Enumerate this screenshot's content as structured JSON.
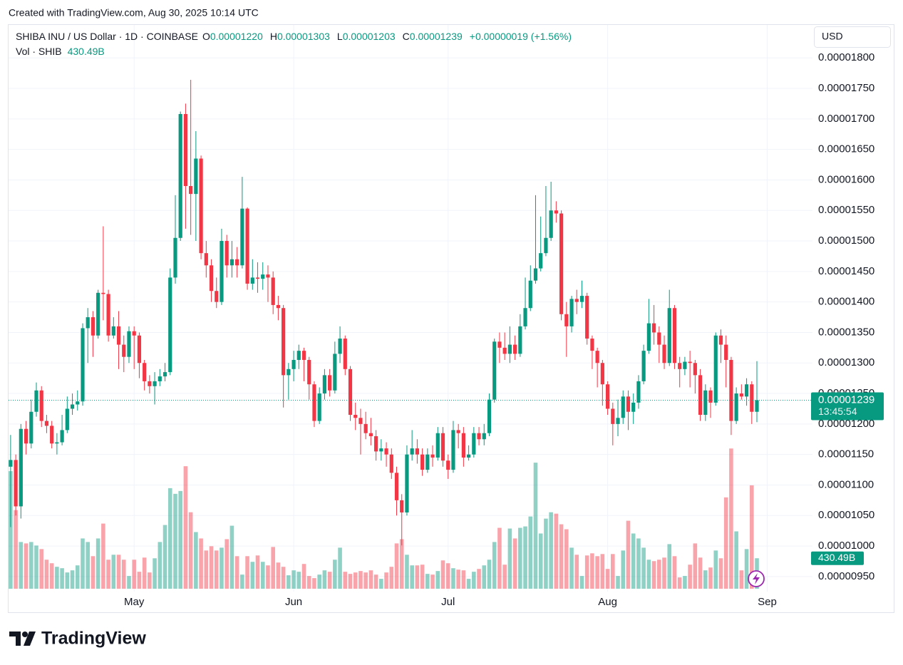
{
  "credit": "Created with TradingView.com, Aug 30, 2025 10:14 UTC",
  "logo": "TradingView",
  "chart_data": {
    "type": "candlestick",
    "title": "SHIBA INU / US Dollar · 1D · COINBASE",
    "ohlc_legend": [
      {
        "label": "O",
        "value": "0.00001220"
      },
      {
        "label": "H",
        "value": "0.00001303"
      },
      {
        "label": "L",
        "value": "0.00001203"
      },
      {
        "label": "C",
        "value": "0.00001239"
      }
    ],
    "change": "+0.00000019 (+1.56%)",
    "volume_title": "Vol · SHIB",
    "volume_value_label": "430.49B",
    "last_price_label": "0.00001239",
    "countdown": "13:45:54",
    "currency": "USD",
    "up_color": "#089981",
    "down_color": "#f23645",
    "grid": true,
    "xlim": [
      -0.4,
      155.8
    ],
    "xticks": [
      {
        "value": 24,
        "label": "May"
      },
      {
        "value": 55,
        "label": "Jun"
      },
      {
        "value": 85,
        "label": "Jul"
      },
      {
        "value": 116,
        "label": "Aug"
      },
      {
        "value": 147,
        "label": "Sep"
      }
    ],
    "ylim": [
      9.3e-06,
      1.854e-05
    ],
    "yticks": [
      {
        "value": 9.5e-06,
        "label": "0.00000950"
      },
      {
        "value": 1e-05,
        "label": "0.00001000"
      },
      {
        "value": 1.05e-05,
        "label": "0.00001050"
      },
      {
        "value": 1.1e-05,
        "label": "0.00001100"
      },
      {
        "value": 1.15e-05,
        "label": "0.00001150"
      },
      {
        "value": 1.2e-05,
        "label": "0.00001200"
      },
      {
        "value": 1.25e-05,
        "label": "0.00001250"
      },
      {
        "value": 1.3e-05,
        "label": "0.00001300"
      },
      {
        "value": 1.35e-05,
        "label": "0.00001350"
      },
      {
        "value": 1.4e-05,
        "label": "0.00001400"
      },
      {
        "value": 1.45e-05,
        "label": "0.00001450"
      },
      {
        "value": 1.5e-05,
        "label": "0.00001500"
      },
      {
        "value": 1.55e-05,
        "label": "0.00001550"
      },
      {
        "value": 1.6e-05,
        "label": "0.00001600"
      },
      {
        "value": 1.65e-05,
        "label": "0.00001650"
      },
      {
        "value": 1.7e-05,
        "label": "0.00001700"
      },
      {
        "value": 1.75e-05,
        "label": "0.00001750"
      },
      {
        "value": 1.8e-05,
        "label": "0.00001800"
      }
    ],
    "y2lim": [
      0,
      7960
    ],
    "open": [
      1.13e-05,
      1.141e-05,
      1.065e-05,
      1.192e-05,
      1.168e-05,
      1.22e-05,
      1.255e-05,
      1.205e-05,
      1.197e-05,
      1.168e-05,
      1.17e-05,
      1.19e-05,
      1.225e-05,
      1.232e-05,
      1.237e-05,
      1.357e-05,
      1.375e-05,
      1.345e-05,
      1.415e-05,
      1.413e-05,
      1.345e-05,
      1.36e-05,
      1.33e-05,
      1.31e-05,
      1.352e-05,
      1.345e-05,
      1.3e-05,
      1.27e-05,
      1.262e-05,
      1.27e-05,
      1.278e-05,
      1.285e-05,
      1.44e-05,
      1.505e-05,
      1.708e-05,
      1.59e-05,
      1.577e-05,
      1.635e-05,
      1.48e-05,
      1.46e-05,
      1.418e-05,
      1.4e-05,
      1.5e-05,
      1.46e-05,
      1.47e-05,
      1.46e-05,
      1.553e-05,
      1.43e-05,
      1.44e-05,
      1.438e-05,
      1.445e-05,
      1.44e-05,
      1.395e-05,
      1.39e-05,
      1.28e-05,
      1.29e-05,
      1.305e-05,
      1.32e-05,
      1.305e-05,
      1.265e-05,
      1.205e-05,
      1.25e-05,
      1.28e-05,
      1.255e-05,
      1.315e-05,
      1.34e-05,
      1.29e-05,
      1.215e-05,
      1.21e-05,
      1.2e-05,
      1.185e-05,
      1.18e-05,
      1.155e-05,
      1.16e-05,
      1.15e-05,
      1.12e-05,
      1.075e-05,
      1.055e-05,
      1.15e-05,
      1.16e-05,
      1.15e-05,
      1.125e-05,
      1.15e-05,
      1.145e-05,
      1.185e-05,
      1.14e-05,
      1.125e-05,
      1.19e-05,
      1.185e-05,
      1.145e-05,
      1.15e-05,
      1.185e-05,
      1.175e-05,
      1.185e-05,
      1.24e-05,
      1.335e-05,
      1.325e-05,
      1.315e-05,
      1.33e-05,
      1.315e-05,
      1.36e-05,
      1.39e-05,
      1.435e-05,
      1.455e-05,
      1.48e-05,
      1.505e-05,
      1.55e-05,
      1.545e-05,
      1.38e-05,
      1.36e-05,
      1.405e-05,
      1.4e-05,
      1.41e-05,
      1.34e-05,
      1.32e-05,
      1.3e-05,
      1.265e-05,
      1.225e-05,
      1.2e-05,
      1.21e-05,
      1.245e-05,
      1.22e-05,
      1.235e-05,
      1.27e-05,
      1.32e-05,
      1.365e-05,
      1.35e-05,
      1.33e-05,
      1.3e-05,
      1.39e-05,
      1.3e-05,
      1.29e-05,
      1.302e-05,
      1.3e-05,
      1.28e-05,
      1.215e-05,
      1.255e-05,
      1.235e-05,
      1.345e-05,
      1.33e-05,
      1.305e-05,
      1.205e-05,
      1.25e-05,
      1.245e-05,
      1.265e-05,
      1.22e-05
    ],
    "high": [
      1.182e-05,
      1.15e-05,
      1.2e-05,
      1.205e-05,
      1.24e-05,
      1.268e-05,
      1.262e-05,
      1.215e-05,
      1.205e-05,
      1.185e-05,
      1.215e-05,
      1.245e-05,
      1.25e-05,
      1.255e-05,
      1.365e-05,
      1.39e-05,
      1.385e-05,
      1.42e-05,
      1.524e-05,
      1.42e-05,
      1.375e-05,
      1.385e-05,
      1.345e-05,
      1.36e-05,
      1.36e-05,
      1.35e-05,
      1.305e-05,
      1.28e-05,
      1.285e-05,
      1.29e-05,
      1.3e-05,
      1.455e-05,
      1.575e-05,
      1.712e-05,
      1.725e-05,
      1.764e-05,
      1.68e-05,
      1.64e-05,
      1.5e-05,
      1.47e-05,
      1.44e-05,
      1.52e-05,
      1.51e-05,
      1.5e-05,
      1.49e-05,
      1.605e-05,
      1.555e-05,
      1.47e-05,
      1.465e-05,
      1.465e-05,
      1.46e-05,
      1.45e-05,
      1.41e-05,
      1.395e-05,
      1.3e-05,
      1.32e-05,
      1.33e-05,
      1.325e-05,
      1.31e-05,
      1.27e-05,
      1.26e-05,
      1.29e-05,
      1.29e-05,
      1.335e-05,
      1.36e-05,
      1.345e-05,
      1.295e-05,
      1.235e-05,
      1.225e-05,
      1.22e-05,
      1.21e-05,
      1.19e-05,
      1.175e-05,
      1.17e-05,
      1.16e-05,
      1.13e-05,
      1.085e-05,
      1.165e-05,
      1.19e-05,
      1.175e-05,
      1.16e-05,
      1.16e-05,
      1.165e-05,
      1.195e-05,
      1.195e-05,
      1.15e-05,
      1.205e-05,
      1.2e-05,
      1.195e-05,
      1.165e-05,
      1.195e-05,
      1.195e-05,
      1.2e-05,
      1.25e-05,
      1.34e-05,
      1.35e-05,
      1.35e-05,
      1.36e-05,
      1.345e-05,
      1.38e-05,
      1.44e-05,
      1.46e-05,
      1.575e-05,
      1.54e-05,
      1.59e-05,
      1.597e-05,
      1.565e-05,
      1.55e-05,
      1.4e-05,
      1.41e-05,
      1.42e-05,
      1.435e-05,
      1.415e-05,
      1.345e-05,
      1.325e-05,
      1.305e-05,
      1.27e-05,
      1.235e-05,
      1.24e-05,
      1.255e-05,
      1.255e-05,
      1.25e-05,
      1.28e-05,
      1.33e-05,
      1.405e-05,
      1.395e-05,
      1.36e-05,
      1.345e-05,
      1.42e-05,
      1.395e-05,
      1.31e-05,
      1.31e-05,
      1.32e-05,
      1.305e-05,
      1.29e-05,
      1.265e-05,
      1.26e-05,
      1.35e-05,
      1.355e-05,
      1.345e-05,
      1.31e-05,
      1.26e-05,
      1.265e-05,
      1.275e-05,
      1.27e-05,
      1.303e-05
    ],
    "low": [
      1.031e-05,
      1.05e-05,
      1.045e-05,
      1.15e-05,
      1.16e-05,
      1.212e-05,
      1.195e-05,
      1.185e-05,
      1.16e-05,
      1.15e-05,
      1.165e-05,
      1.185e-05,
      1.215e-05,
      1.222e-05,
      1.23e-05,
      1.3e-05,
      1.31e-05,
      1.34e-05,
      1.37e-05,
      1.335e-05,
      1.34e-05,
      1.29e-05,
      1.285e-05,
      1.3e-05,
      1.29e-05,
      1.275e-05,
      1.255e-05,
      1.25e-05,
      1.232e-05,
      1.262e-05,
      1.27e-05,
      1.28e-05,
      1.43e-05,
      1.5e-05,
      1.52e-05,
      1.51e-05,
      1.5e-05,
      1.47e-05,
      1.44e-05,
      1.4e-05,
      1.39e-05,
      1.395e-05,
      1.44e-05,
      1.44e-05,
      1.44e-05,
      1.455e-05,
      1.42e-05,
      1.42e-05,
      1.415e-05,
      1.42e-05,
      1.4e-05,
      1.38e-05,
      1.37e-05,
      1.227e-05,
      1.24e-05,
      1.27e-05,
      1.29e-05,
      1.27e-05,
      1.24e-05,
      1.195e-05,
      1.2e-05,
      1.24e-05,
      1.245e-05,
      1.25e-05,
      1.3e-05,
      1.28e-05,
      1.205e-05,
      1.19e-05,
      1.15e-05,
      1.175e-05,
      1.165e-05,
      1.14e-05,
      1.14e-05,
      1.13e-05,
      1.11e-05,
      1.05e-05,
      1.001e-05,
      1.05e-05,
      1.14e-05,
      1.135e-05,
      1.115e-05,
      1.12e-05,
      1.13e-05,
      1.14e-05,
      1.13e-05,
      1.11e-05,
      1.12e-05,
      1.16e-05,
      1.13e-05,
      1.14e-05,
      1.145e-05,
      1.165e-05,
      1.165e-05,
      1.18e-05,
      1.235e-05,
      1.3e-05,
      1.305e-05,
      1.3e-05,
      1.305e-05,
      1.31e-05,
      1.355e-05,
      1.385e-05,
      1.43e-05,
      1.45e-05,
      1.475e-05,
      1.5e-05,
      1.53e-05,
      1.37e-05,
      1.31e-05,
      1.35e-05,
      1.38e-05,
      1.39e-05,
      1.33e-05,
      1.29e-05,
      1.26e-05,
      1.23e-05,
      1.215e-05,
      1.165e-05,
      1.18e-05,
      1.2e-05,
      1.19e-05,
      1.2e-05,
      1.225e-05,
      1.265e-05,
      1.315e-05,
      1.33e-05,
      1.3e-05,
      1.29e-05,
      1.295e-05,
      1.29e-05,
      1.26e-05,
      1.28e-05,
      1.26e-05,
      1.25e-05,
      1.205e-05,
      1.205e-05,
      1.21e-05,
      1.23e-05,
      1.3e-05,
      1.26e-05,
      1.182e-05,
      1.2e-05,
      1.24e-05,
      1.23e-05,
      1.2e-05,
      1.203e-05
    ],
    "close": [
      1.141e-05,
      1.065e-05,
      1.192e-05,
      1.168e-05,
      1.22e-05,
      1.255e-05,
      1.205e-05,
      1.197e-05,
      1.168e-05,
      1.17e-05,
      1.19e-05,
      1.225e-05,
      1.232e-05,
      1.237e-05,
      1.357e-05,
      1.375e-05,
      1.345e-05,
      1.415e-05,
      1.413e-05,
      1.345e-05,
      1.36e-05,
      1.33e-05,
      1.31e-05,
      1.352e-05,
      1.345e-05,
      1.3e-05,
      1.27e-05,
      1.262e-05,
      1.27e-05,
      1.278e-05,
      1.285e-05,
      1.44e-05,
      1.505e-05,
      1.708e-05,
      1.59e-05,
      1.577e-05,
      1.635e-05,
      1.48e-05,
      1.46e-05,
      1.418e-05,
      1.4e-05,
      1.5e-05,
      1.46e-05,
      1.47e-05,
      1.46e-05,
      1.553e-05,
      1.43e-05,
      1.44e-05,
      1.438e-05,
      1.445e-05,
      1.44e-05,
      1.395e-05,
      1.39e-05,
      1.28e-05,
      1.29e-05,
      1.305e-05,
      1.32e-05,
      1.305e-05,
      1.265e-05,
      1.205e-05,
      1.25e-05,
      1.28e-05,
      1.255e-05,
      1.315e-05,
      1.34e-05,
      1.29e-05,
      1.215e-05,
      1.21e-05,
      1.2e-05,
      1.185e-05,
      1.18e-05,
      1.155e-05,
      1.16e-05,
      1.15e-05,
      1.12e-05,
      1.075e-05,
      1.055e-05,
      1.15e-05,
      1.16e-05,
      1.15e-05,
      1.125e-05,
      1.15e-05,
      1.145e-05,
      1.185e-05,
      1.14e-05,
      1.125e-05,
      1.19e-05,
      1.185e-05,
      1.145e-05,
      1.15e-05,
      1.185e-05,
      1.175e-05,
      1.185e-05,
      1.24e-05,
      1.335e-05,
      1.325e-05,
      1.315e-05,
      1.33e-05,
      1.315e-05,
      1.36e-05,
      1.39e-05,
      1.435e-05,
      1.455e-05,
      1.48e-05,
      1.505e-05,
      1.55e-05,
      1.545e-05,
      1.38e-05,
      1.36e-05,
      1.405e-05,
      1.4e-05,
      1.41e-05,
      1.34e-05,
      1.32e-05,
      1.3e-05,
      1.265e-05,
      1.225e-05,
      1.2e-05,
      1.21e-05,
      1.245e-05,
      1.22e-05,
      1.235e-05,
      1.27e-05,
      1.32e-05,
      1.365e-05,
      1.35e-05,
      1.33e-05,
      1.3e-05,
      1.39e-05,
      1.3e-05,
      1.29e-05,
      1.302e-05,
      1.3e-05,
      1.28e-05,
      1.215e-05,
      1.255e-05,
      1.235e-05,
      1.345e-05,
      1.33e-05,
      1.305e-05,
      1.205e-05,
      1.25e-05,
      1.245e-05,
      1.265e-05,
      1.22e-05,
      1.239e-05
    ],
    "volume": [
      1660,
      1110,
      660,
      640,
      660,
      610,
      560,
      410,
      360,
      310,
      290,
      230,
      260,
      330,
      710,
      660,
      460,
      710,
      920,
      410,
      480,
      480,
      410,
      180,
      410,
      240,
      440,
      230,
      430,
      660,
      900,
      1420,
      1340,
      1380,
      1730,
      1080,
      800,
      710,
      540,
      600,
      540,
      580,
      700,
      890,
      460,
      200,
      460,
      380,
      470,
      380,
      330,
      590,
      370,
      310,
      190,
      260,
      240,
      350,
      180,
      150,
      200,
      260,
      240,
      410,
      580,
      240,
      210,
      230,
      250,
      230,
      260,
      200,
      140,
      230,
      310,
      640,
      700,
      480,
      330,
      330,
      340,
      210,
      200,
      250,
      400,
      360,
      290,
      270,
      260,
      140,
      240,
      280,
      330,
      410,
      660,
      860,
      340,
      850,
      710,
      860,
      880,
      1020,
      1780,
      780,
      990,
      1080,
      1060,
      910,
      840,
      580,
      480,
      180,
      470,
      500,
      460,
      490,
      280,
      490,
      180,
      540,
      960,
      780,
      710,
      580,
      410,
      390,
      410,
      440,
      630,
      460,
      160,
      180,
      340,
      640,
      440,
      260,
      300,
      540,
      430,
      1290,
      1980,
      810,
      260,
      560,
      1460,
      430.49
    ]
  }
}
